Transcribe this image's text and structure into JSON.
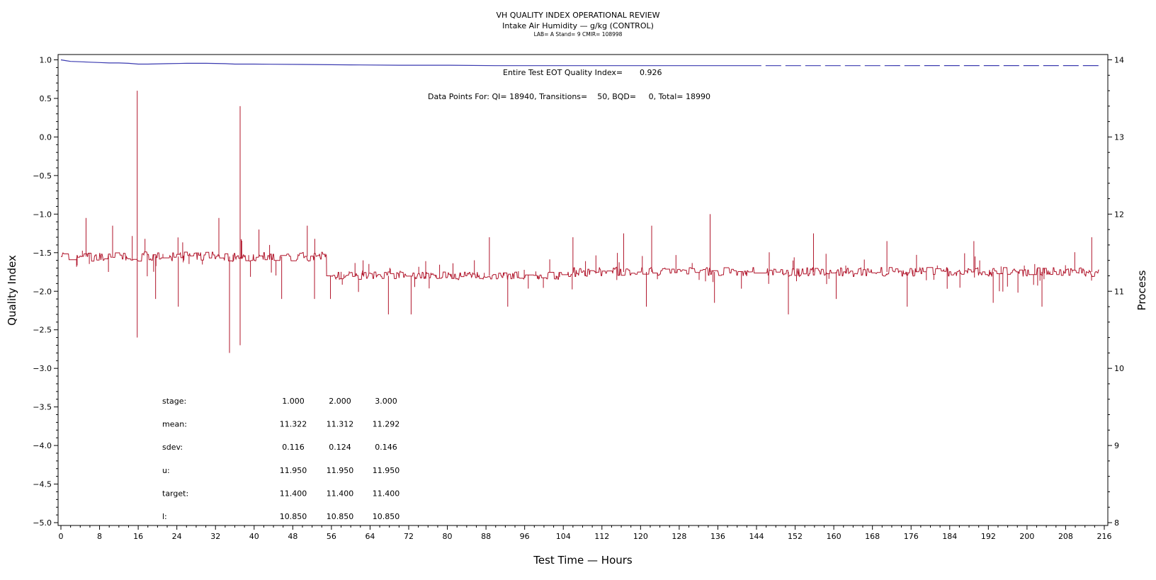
{
  "header": {
    "title": "VH QUALITY INDEX OPERATIONAL REVIEW",
    "subtitle": "Intake Air Humidity — g/kg (CONTROL)",
    "meta": "LAB= A Stand= 9 CMIR= 108998"
  },
  "annotations": {
    "eot_label": "Entire Test EOT Quality Index=",
    "eot_value": "0.926",
    "data_points": "Data Points For: QI= 18940, Transitions=    50, BQD=     0, Total= 18990"
  },
  "stats_table": {
    "rows": [
      {
        "label": "stage:",
        "values": [
          "1.000",
          "2.000",
          "3.000"
        ]
      },
      {
        "label": "mean:",
        "values": [
          "11.322",
          "11.312",
          "11.292"
        ]
      },
      {
        "label": "sdev:",
        "values": [
          "0.116",
          "0.124",
          "0.146"
        ]
      },
      {
        "label": "u:",
        "values": [
          "11.950",
          "11.950",
          "11.950"
        ]
      },
      {
        "label": "target:",
        "values": [
          "11.400",
          "11.400",
          "11.400"
        ]
      },
      {
        "label": "l:",
        "values": [
          "10.850",
          "10.850",
          "10.850"
        ]
      }
    ]
  },
  "colors": {
    "quality_index": "#3a3ab0",
    "process": "#b0142a",
    "axis": "#000000"
  },
  "chart_data": {
    "type": "line",
    "xlabel": "Test Time — Hours",
    "ylabel": "Quality Index",
    "y2label": "Process",
    "xlim": [
      0,
      216
    ],
    "ylim": [
      -5.0,
      1.0
    ],
    "y2lim": [
      8,
      14
    ],
    "x_ticks": [
      0,
      8,
      16,
      24,
      32,
      40,
      48,
      56,
      64,
      72,
      80,
      88,
      96,
      104,
      112,
      120,
      128,
      136,
      144,
      152,
      160,
      168,
      176,
      184,
      192,
      200,
      208,
      216
    ],
    "y_ticks": [
      1.0,
      0.5,
      0.0,
      -0.5,
      -1.0,
      -1.5,
      -2.0,
      -2.5,
      -3.0,
      -3.5,
      -4.0,
      -4.5,
      -5.0
    ],
    "y2_ticks": [
      8,
      9,
      10,
      11,
      12,
      13,
      14
    ],
    "grid": false,
    "series": [
      {
        "name": "Quality Index",
        "axis": "left",
        "x": [
          0,
          1,
          2,
          4,
          6,
          8,
          10,
          12,
          14,
          16,
          18,
          22,
          26,
          30,
          34,
          36,
          40,
          50,
          60,
          70,
          80,
          90,
          100,
          110,
          120,
          130,
          140,
          150,
          160,
          170,
          180,
          190,
          200,
          210,
          215
        ],
        "y": [
          1.0,
          0.99,
          0.98,
          0.975,
          0.97,
          0.965,
          0.96,
          0.96,
          0.955,
          0.945,
          0.945,
          0.95,
          0.955,
          0.955,
          0.95,
          0.945,
          0.945,
          0.94,
          0.935,
          0.93,
          0.93,
          0.925,
          0.925,
          0.925,
          0.925,
          0.925,
          0.925,
          0.925,
          0.925,
          0.925,
          0.926,
          0.926,
          0.926,
          0.926,
          0.926
        ]
      },
      {
        "name": "Process",
        "axis": "right",
        "segments": [
          {
            "x": [
              0,
              55
            ],
            "mean": 11.45,
            "noise": 0.06
          },
          {
            "x": [
              55,
              105
            ],
            "mean": 11.2,
            "noise": 0.05
          },
          {
            "x": [
              105,
              215
            ],
            "mean": 11.25,
            "noise": 0.06
          }
        ],
        "spikes": [
          {
            "x": 5.2,
            "y": 11.95
          },
          {
            "x": 10.7,
            "y": 11.85
          },
          {
            "x": 15.8,
            "y": 13.6
          },
          {
            "x": 15.8,
            "y": 10.4
          },
          {
            "x": 19.6,
            "y": 10.9
          },
          {
            "x": 24.3,
            "y": 10.8
          },
          {
            "x": 32.7,
            "y": 11.95
          },
          {
            "x": 34.9,
            "y": 10.2
          },
          {
            "x": 37.1,
            "y": 13.4
          },
          {
            "x": 37.1,
            "y": 10.3
          },
          {
            "x": 41.0,
            "y": 11.8
          },
          {
            "x": 45.7,
            "y": 10.9
          },
          {
            "x": 51.0,
            "y": 11.85
          },
          {
            "x": 52.5,
            "y": 10.9
          },
          {
            "x": 55.8,
            "y": 10.9
          },
          {
            "x": 67.8,
            "y": 10.7
          },
          {
            "x": 72.5,
            "y": 10.7
          },
          {
            "x": 88.7,
            "y": 11.7
          },
          {
            "x": 92.5,
            "y": 10.8
          },
          {
            "x": 106.0,
            "y": 11.7
          },
          {
            "x": 116.5,
            "y": 11.75
          },
          {
            "x": 121.2,
            "y": 10.8
          },
          {
            "x": 122.3,
            "y": 11.85
          },
          {
            "x": 134.4,
            "y": 12.0
          },
          {
            "x": 135.3,
            "y": 10.85
          },
          {
            "x": 150.6,
            "y": 10.7
          },
          {
            "x": 155.8,
            "y": 11.75
          },
          {
            "x": 160.5,
            "y": 10.9
          },
          {
            "x": 171.0,
            "y": 11.65
          },
          {
            "x": 175.2,
            "y": 10.8
          },
          {
            "x": 189.0,
            "y": 11.65
          },
          {
            "x": 193.0,
            "y": 10.85
          },
          {
            "x": 203.1,
            "y": 10.8
          },
          {
            "x": 213.4,
            "y": 11.7
          }
        ]
      }
    ]
  }
}
